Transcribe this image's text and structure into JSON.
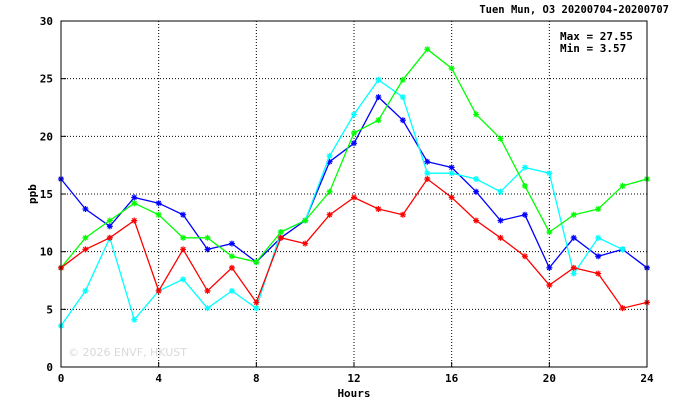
{
  "header": {
    "title": "Tuen Mun, O3 20200704-20200707"
  },
  "stats": {
    "max_text": "Max = 27.55",
    "min_text": "Min =  3.57"
  },
  "watermark": "© 2026 ENVF, HKUST",
  "chart_data": {
    "type": "line",
    "title": "Tuen Mun, O3 20200704-20200707",
    "xlabel": "Hours",
    "ylabel": "ppb",
    "xlim": [
      0,
      24
    ],
    "ylim": [
      0,
      30
    ],
    "xticks": [
      0,
      4,
      8,
      12,
      16,
      20,
      24
    ],
    "yticks": [
      0,
      5,
      10,
      15,
      20,
      25,
      30
    ],
    "grid": true,
    "marker": "star",
    "series": [
      {
        "color": "#0000ff",
        "x": [
          0,
          1,
          2,
          3,
          4,
          5,
          6,
          7,
          8,
          9,
          10,
          11,
          12,
          13,
          14,
          15,
          16,
          17,
          18,
          19,
          20,
          21,
          22,
          23,
          24
        ],
        "y": [
          16.3,
          13.7,
          12.2,
          14.7,
          14.2,
          13.2,
          10.2,
          10.7,
          9.1,
          11.2,
          12.7,
          17.8,
          19.4,
          23.4,
          21.4,
          17.8,
          17.3,
          15.2,
          12.7,
          13.2,
          8.6,
          11.2,
          9.6,
          10.2,
          8.6
        ]
      },
      {
        "color": "#00ffff",
        "x": [
          0,
          1,
          2,
          3,
          4,
          5,
          6,
          7,
          8,
          9,
          10,
          11,
          12,
          13,
          14,
          15,
          16,
          17,
          18,
          19,
          20,
          21,
          22,
          23,
          24
        ],
        "y": [
          3.57,
          6.6,
          11.2,
          4.1,
          6.6,
          7.6,
          5.1,
          6.6,
          5.1,
          11.7,
          12.7,
          18.3,
          21.9,
          24.9,
          23.4,
          16.8,
          16.8,
          16.3,
          15.2,
          17.3,
          16.8,
          8.1,
          11.2,
          10.2,
          null
        ]
      },
      {
        "color": "#00ff00",
        "x": [
          0,
          1,
          2,
          3,
          4,
          5,
          6,
          7,
          8,
          9,
          10,
          11,
          12,
          13,
          14,
          15,
          16,
          17,
          18,
          19,
          20,
          21,
          22,
          23,
          24
        ],
        "y": [
          8.6,
          11.2,
          12.7,
          14.2,
          13.2,
          11.2,
          11.2,
          9.6,
          9.1,
          11.7,
          12.7,
          15.2,
          20.3,
          21.4,
          24.9,
          27.55,
          25.9,
          21.9,
          19.8,
          15.7,
          11.7,
          13.2,
          13.7,
          15.7,
          16.3
        ]
      },
      {
        "color": "#ff0000",
        "x": [
          0,
          1,
          2,
          3,
          4,
          5,
          6,
          7,
          8,
          9,
          10,
          11,
          12,
          13,
          14,
          15,
          16,
          17,
          18,
          19,
          20,
          21,
          22,
          23,
          24
        ],
        "y": [
          8.6,
          10.2,
          11.2,
          12.7,
          6.6,
          10.2,
          6.6,
          8.6,
          5.6,
          11.2,
          10.7,
          13.2,
          14.7,
          13.7,
          13.2,
          16.3,
          14.7,
          12.7,
          11.2,
          9.6,
          7.1,
          8.6,
          8.1,
          5.1,
          5.6
        ]
      }
    ]
  }
}
